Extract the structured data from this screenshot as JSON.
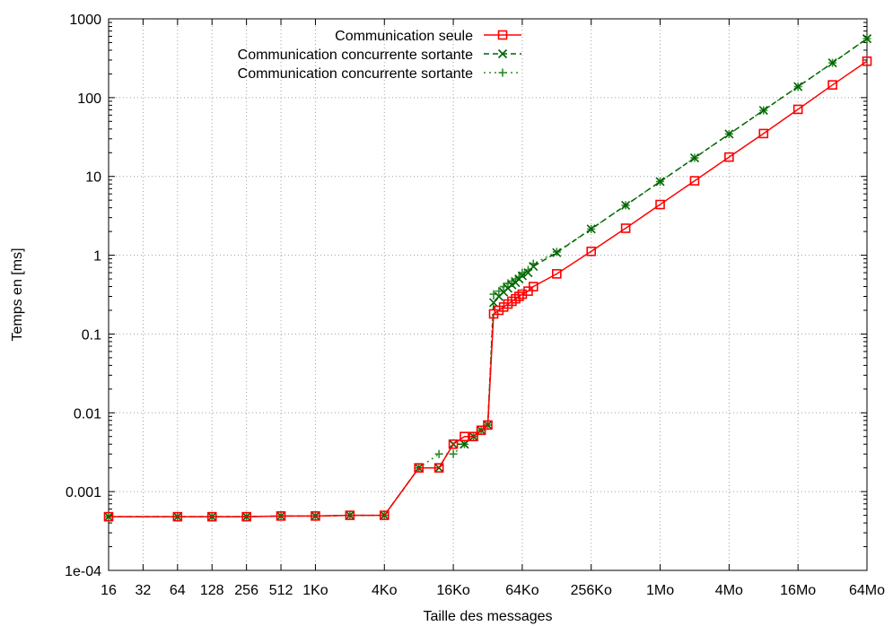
{
  "chart_data": {
    "type": "line",
    "title": "",
    "xlabel": "Taille des messages",
    "ylabel": "Temps en [ms]",
    "x_scale": "log2",
    "y_scale": "log10",
    "xlim": [
      16,
      67108864
    ],
    "ylim": [
      0.0001,
      1000
    ],
    "grid": true,
    "legend_position": "top-right",
    "x_ticks": [
      {
        "value": 16,
        "label": "16"
      },
      {
        "value": 32,
        "label": "32"
      },
      {
        "value": 64,
        "label": "64"
      },
      {
        "value": 128,
        "label": "128"
      },
      {
        "value": 256,
        "label": "256"
      },
      {
        "value": 512,
        "label": "512"
      },
      {
        "value": 1024,
        "label": "1Ko"
      },
      {
        "value": 4096,
        "label": "4Ko"
      },
      {
        "value": 16384,
        "label": "16Ko"
      },
      {
        "value": 65536,
        "label": "64Ko"
      },
      {
        "value": 262144,
        "label": "256Ko"
      },
      {
        "value": 1048576,
        "label": "1Mo"
      },
      {
        "value": 4194304,
        "label": "4Mo"
      },
      {
        "value": 16777216,
        "label": "16Mo"
      },
      {
        "value": 67108864,
        "label": "64Mo"
      }
    ],
    "y_ticks": [
      {
        "value": 0.0001,
        "label": "1e-04"
      },
      {
        "value": 0.001,
        "label": "0.001"
      },
      {
        "value": 0.01,
        "label": "0.01"
      },
      {
        "value": 0.1,
        "label": "0.1"
      },
      {
        "value": 1,
        "label": "1"
      },
      {
        "value": 10,
        "label": "10"
      },
      {
        "value": 100,
        "label": "100"
      },
      {
        "value": 1000,
        "label": "1000"
      }
    ],
    "series": [
      {
        "name": "Communication seule",
        "color": "#ff0000",
        "line_style": "solid",
        "marker": "square",
        "points": [
          [
            16,
            0.00048
          ],
          [
            64,
            0.00048
          ],
          [
            128,
            0.00048
          ],
          [
            256,
            0.00048
          ],
          [
            512,
            0.00049
          ],
          [
            1024,
            0.00049
          ],
          [
            2048,
            0.0005
          ],
          [
            4096,
            0.0005
          ],
          [
            8192,
            0.002
          ],
          [
            12288,
            0.002
          ],
          [
            16384,
            0.004
          ],
          [
            20480,
            0.005
          ],
          [
            24576,
            0.005
          ],
          [
            28672,
            0.006
          ],
          [
            32768,
            0.007
          ],
          [
            36864,
            0.18
          ],
          [
            40960,
            0.2
          ],
          [
            45056,
            0.22
          ],
          [
            49152,
            0.24
          ],
          [
            53248,
            0.26
          ],
          [
            57344,
            0.28
          ],
          [
            61440,
            0.3
          ],
          [
            65536,
            0.32
          ],
          [
            73728,
            0.35
          ],
          [
            81920,
            0.4
          ],
          [
            131072,
            0.58
          ],
          [
            262144,
            1.12
          ],
          [
            524288,
            2.2
          ],
          [
            1048576,
            4.4
          ],
          [
            2097152,
            8.8
          ],
          [
            4194304,
            17.6
          ],
          [
            8388608,
            35
          ],
          [
            16777216,
            71
          ],
          [
            33554432,
            145
          ],
          [
            67108864,
            290
          ]
        ]
      },
      {
        "name": "Communication concurrente sortante",
        "color": "#006400",
        "line_style": "dashed",
        "marker": "cross",
        "points": [
          [
            16,
            0.00048
          ],
          [
            64,
            0.00048
          ],
          [
            128,
            0.00048
          ],
          [
            256,
            0.00048
          ],
          [
            512,
            0.00049
          ],
          [
            1024,
            0.00049
          ],
          [
            2048,
            0.0005
          ],
          [
            4096,
            0.0005
          ],
          [
            8192,
            0.002
          ],
          [
            12288,
            0.002
          ],
          [
            16384,
            0.004
          ],
          [
            20480,
            0.004
          ],
          [
            24576,
            0.005
          ],
          [
            28672,
            0.006
          ],
          [
            32768,
            0.007
          ],
          [
            36864,
            0.25
          ],
          [
            40960,
            0.3
          ],
          [
            45056,
            0.34
          ],
          [
            49152,
            0.38
          ],
          [
            53248,
            0.42
          ],
          [
            57344,
            0.45
          ],
          [
            61440,
            0.5
          ],
          [
            65536,
            0.55
          ],
          [
            73728,
            0.6
          ],
          [
            81920,
            0.72
          ],
          [
            131072,
            1.08
          ],
          [
            262144,
            2.15
          ],
          [
            524288,
            4.3
          ],
          [
            1048576,
            8.6
          ],
          [
            2097152,
            17.2
          ],
          [
            4194304,
            34.5
          ],
          [
            8388608,
            69
          ],
          [
            16777216,
            138
          ],
          [
            33554432,
            276
          ],
          [
            67108864,
            560
          ]
        ]
      },
      {
        "name": "Communication concurrente sortante",
        "color": "#2e8b2e",
        "line_style": "dotted",
        "marker": "plus",
        "points": [
          [
            16,
            0.00048
          ],
          [
            64,
            0.00048
          ],
          [
            128,
            0.00048
          ],
          [
            256,
            0.00048
          ],
          [
            512,
            0.00049
          ],
          [
            1024,
            0.00049
          ],
          [
            2048,
            0.0005
          ],
          [
            4096,
            0.0005
          ],
          [
            8192,
            0.002
          ],
          [
            12288,
            0.003
          ],
          [
            16384,
            0.003
          ],
          [
            20480,
            0.004
          ],
          [
            24576,
            0.005
          ],
          [
            28672,
            0.006
          ],
          [
            32768,
            0.007
          ],
          [
            36864,
            0.32
          ],
          [
            40960,
            0.35
          ],
          [
            45056,
            0.4
          ],
          [
            49152,
            0.44
          ],
          [
            53248,
            0.47
          ],
          [
            57344,
            0.5
          ],
          [
            61440,
            0.53
          ],
          [
            65536,
            0.6
          ],
          [
            73728,
            0.65
          ],
          [
            81920,
            0.78
          ],
          [
            131072,
            1.1
          ],
          [
            262144,
            2.15
          ],
          [
            524288,
            4.3
          ],
          [
            1048576,
            8.6
          ],
          [
            2097152,
            17.2
          ],
          [
            4194304,
            34.5
          ],
          [
            8388608,
            69
          ],
          [
            16777216,
            138
          ],
          [
            33554432,
            276
          ],
          [
            67108864,
            560
          ]
        ]
      }
    ]
  }
}
